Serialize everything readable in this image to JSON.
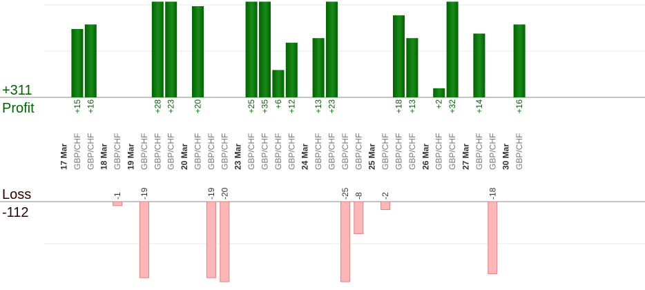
{
  "summary": {
    "profit_total": "+311",
    "profit_label": "Profit",
    "loss_label": "Loss",
    "loss_total": "-112"
  },
  "colors": {
    "profit_bar": "#006400",
    "profit_bar_light": "#1a8a1a",
    "loss_bar_fill": "#ffb6b6",
    "loss_bar_stroke": "#e08080",
    "profit_text": "#006400",
    "loss_text": "#330000",
    "axis": "#888888",
    "grid": "#e8e8e8"
  },
  "chart_data": {
    "type": "bar",
    "columns": [
      {
        "kind": "date",
        "label": "17 Mar"
      },
      {
        "kind": "trade",
        "label": "GBP/CHF",
        "profit": 15
      },
      {
        "kind": "trade",
        "label": "GBP/CHF",
        "profit": 16
      },
      {
        "kind": "date",
        "label": "18 Mar"
      },
      {
        "kind": "trade",
        "label": "GBP/CHF",
        "loss": -1
      },
      {
        "kind": "date",
        "label": "19 Mar"
      },
      {
        "kind": "trade",
        "label": "GBP/CHF",
        "loss": -19
      },
      {
        "kind": "trade",
        "label": "GBP/CHF",
        "profit": 28
      },
      {
        "kind": "trade",
        "label": "GBP/CHF",
        "profit": 23
      },
      {
        "kind": "date",
        "label": "20 Mar"
      },
      {
        "kind": "trade",
        "label": "GBP/CHF",
        "profit": 20
      },
      {
        "kind": "trade",
        "label": "GBP/CHF",
        "loss": -19
      },
      {
        "kind": "trade",
        "label": "GBP/CHF",
        "loss": -20
      },
      {
        "kind": "date",
        "label": "23 Mar"
      },
      {
        "kind": "trade",
        "label": "GBP/CHF",
        "profit": 25
      },
      {
        "kind": "trade",
        "label": "GBP/CHF",
        "profit": 35
      },
      {
        "kind": "trade",
        "label": "GBP/CHF",
        "profit": 6
      },
      {
        "kind": "trade",
        "label": "GBP/CHF",
        "profit": 12
      },
      {
        "kind": "date",
        "label": "24 Mar"
      },
      {
        "kind": "trade",
        "label": "GBP/CHF",
        "profit": 13
      },
      {
        "kind": "trade",
        "label": "GBP/CHF",
        "profit": 23
      },
      {
        "kind": "trade",
        "label": "GBP/CHF",
        "loss": -25
      },
      {
        "kind": "trade",
        "label": "GBP/CHF",
        "loss": -8
      },
      {
        "kind": "date",
        "label": "25 Mar"
      },
      {
        "kind": "trade",
        "label": "GBP/CHF",
        "loss": -2
      },
      {
        "kind": "trade",
        "label": "GBP/CHF",
        "profit": 18
      },
      {
        "kind": "trade",
        "label": "GBP/CHF",
        "profit": 13
      },
      {
        "kind": "date",
        "label": "26 Mar"
      },
      {
        "kind": "trade",
        "label": "GBP/CHF",
        "profit": 2
      },
      {
        "kind": "trade",
        "label": "GBP/CHF",
        "profit": 32
      },
      {
        "kind": "date",
        "label": "27 Mar"
      },
      {
        "kind": "trade",
        "label": "GBP/CHF",
        "profit": 14
      },
      {
        "kind": "trade",
        "label": "GBP/CHF",
        "loss": -18
      },
      {
        "kind": "date",
        "label": "30 Mar"
      },
      {
        "kind": "trade",
        "label": "GBP/CHF",
        "profit": 16
      }
    ],
    "profit_scale_max": 21,
    "loss_scale_max": 20,
    "grid": true
  }
}
